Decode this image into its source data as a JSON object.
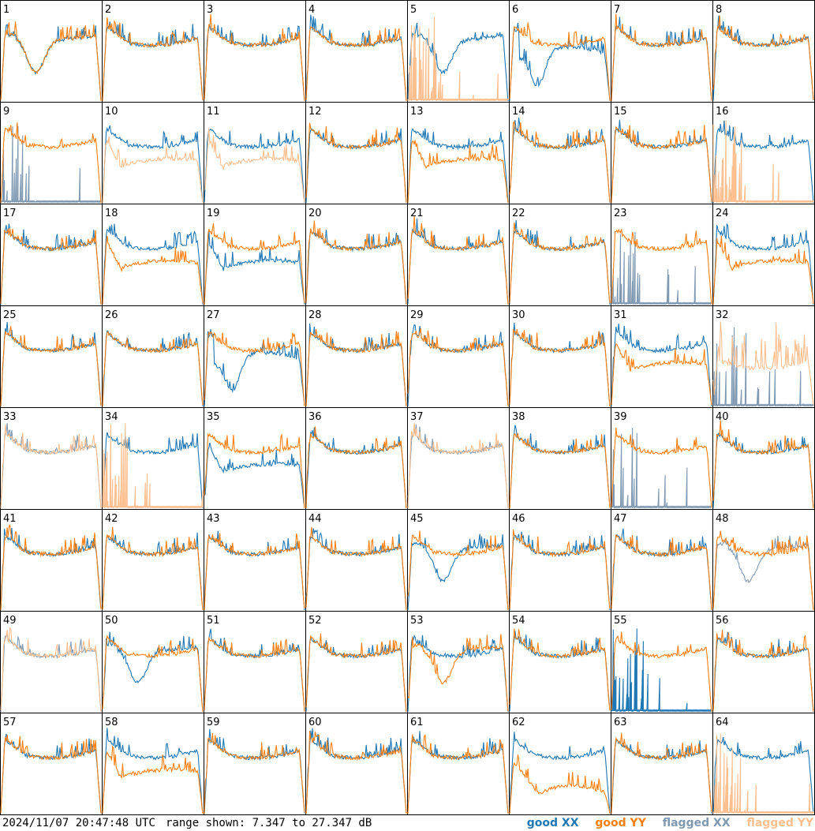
{
  "footer": {
    "timestamp": "2024/11/07 20:47:48 UTC",
    "range_text": "range shown: 7.347 to 27.347 dB"
  },
  "legend": {
    "good_xx": "good XX",
    "good_yy": "good YY",
    "flagged_xx": "flagged XX",
    "flagged_yy": "flagged YY"
  },
  "colors": {
    "good_xx": "#1f77b4",
    "good_yy": "#ff7f0e",
    "flagged_xx": "#7f99b2",
    "flagged_yy": "#ffbf8f"
  },
  "chart_data": {
    "type": "line",
    "grid": "8x8 small multiples, one panel per antenna",
    "ylim": [
      7.347,
      27.347
    ],
    "panels": [
      {
        "id": "1",
        "xx": "good",
        "yy": "good",
        "xx_shape": "dip",
        "yy_shape": "dip"
      },
      {
        "id": "2",
        "xx": "good",
        "yy": "good",
        "xx_shape": "normal",
        "yy_shape": "normal"
      },
      {
        "id": "3",
        "xx": "good",
        "yy": "good",
        "xx_shape": "normal",
        "yy_shape": "normal"
      },
      {
        "id": "4",
        "xx": "good",
        "yy": "good",
        "xx_shape": "normal",
        "yy_shape": "normal"
      },
      {
        "id": "5",
        "xx": "good",
        "yy": "flagged",
        "xx_shape": "dip",
        "yy_shape": "dead"
      },
      {
        "id": "6",
        "xx": "good",
        "yy": "good",
        "xx_shape": "deepdip",
        "yy_shape": "normal"
      },
      {
        "id": "7",
        "xx": "good",
        "yy": "good",
        "xx_shape": "normal",
        "yy_shape": "normal"
      },
      {
        "id": "8",
        "xx": "good",
        "yy": "good",
        "xx_shape": "normal",
        "yy_shape": "normal"
      },
      {
        "id": "9",
        "xx": "flagged",
        "yy": "good",
        "xx_shape": "dead",
        "yy_shape": "normal"
      },
      {
        "id": "10",
        "xx": "good",
        "yy": "flagged",
        "xx_shape": "normal",
        "yy_shape": "low"
      },
      {
        "id": "11",
        "xx": "good",
        "yy": "flagged",
        "xx_shape": "normal",
        "yy_shape": "low"
      },
      {
        "id": "12",
        "xx": "good",
        "yy": "good",
        "xx_shape": "normal",
        "yy_shape": "normal"
      },
      {
        "id": "13",
        "xx": "good",
        "yy": "good",
        "xx_shape": "normal",
        "yy_shape": "low"
      },
      {
        "id": "14",
        "xx": "good",
        "yy": "good",
        "xx_shape": "normal",
        "yy_shape": "normal"
      },
      {
        "id": "15",
        "xx": "good",
        "yy": "good",
        "xx_shape": "normal",
        "yy_shape": "normal"
      },
      {
        "id": "16",
        "xx": "good",
        "yy": "flagged",
        "xx_shape": "normal",
        "yy_shape": "dead"
      },
      {
        "id": "17",
        "xx": "good",
        "yy": "good",
        "xx_shape": "normal",
        "yy_shape": "normal"
      },
      {
        "id": "18",
        "xx": "good",
        "yy": "good",
        "xx_shape": "normal",
        "yy_shape": "low"
      },
      {
        "id": "19",
        "xx": "good",
        "yy": "good",
        "xx_shape": "low",
        "yy_shape": "normal"
      },
      {
        "id": "20",
        "xx": "good",
        "yy": "good",
        "xx_shape": "normal",
        "yy_shape": "normal"
      },
      {
        "id": "21",
        "xx": "good",
        "yy": "good",
        "xx_shape": "normal",
        "yy_shape": "normal"
      },
      {
        "id": "22",
        "xx": "good",
        "yy": "good",
        "xx_shape": "normal",
        "yy_shape": "normal"
      },
      {
        "id": "23",
        "xx": "flagged",
        "yy": "good",
        "xx_shape": "dead",
        "yy_shape": "normal"
      },
      {
        "id": "24",
        "xx": "good",
        "yy": "good",
        "xx_shape": "normal",
        "yy_shape": "low"
      },
      {
        "id": "25",
        "xx": "good",
        "yy": "good",
        "xx_shape": "normal",
        "yy_shape": "normal"
      },
      {
        "id": "26",
        "xx": "good",
        "yy": "good",
        "xx_shape": "normal",
        "yy_shape": "normal"
      },
      {
        "id": "27",
        "xx": "good",
        "yy": "good",
        "xx_shape": "deepdip",
        "yy_shape": "normal"
      },
      {
        "id": "28",
        "xx": "good",
        "yy": "good",
        "xx_shape": "normal",
        "yy_shape": "normal"
      },
      {
        "id": "29",
        "xx": "good",
        "yy": "good",
        "xx_shape": "normal",
        "yy_shape": "normal"
      },
      {
        "id": "30",
        "xx": "good",
        "yy": "good",
        "xx_shape": "normal",
        "yy_shape": "normal"
      },
      {
        "id": "31",
        "xx": "good",
        "yy": "good",
        "xx_shape": "normal",
        "yy_shape": "low"
      },
      {
        "id": "32",
        "xx": "flagged",
        "yy": "flagged",
        "xx_shape": "dead",
        "yy_shape": "noisy"
      },
      {
        "id": "33",
        "xx": "flagged",
        "yy": "flagged",
        "xx_shape": "normal",
        "yy_shape": "normal"
      },
      {
        "id": "34",
        "xx": "good",
        "yy": "flagged",
        "xx_shape": "normal",
        "yy_shape": "dead"
      },
      {
        "id": "35",
        "xx": "good",
        "yy": "good",
        "xx_shape": "low",
        "yy_shape": "normal"
      },
      {
        "id": "36",
        "xx": "good",
        "yy": "good",
        "xx_shape": "normal",
        "yy_shape": "normal"
      },
      {
        "id": "37",
        "xx": "flagged",
        "yy": "flagged",
        "xx_shape": "normal",
        "yy_shape": "normal"
      },
      {
        "id": "38",
        "xx": "good",
        "yy": "good",
        "xx_shape": "normal",
        "yy_shape": "normal"
      },
      {
        "id": "39",
        "xx": "flagged",
        "yy": "good",
        "xx_shape": "dead",
        "yy_shape": "normal"
      },
      {
        "id": "40",
        "xx": "good",
        "yy": "good",
        "xx_shape": "normal",
        "yy_shape": "normal"
      },
      {
        "id": "41",
        "xx": "good",
        "yy": "good",
        "xx_shape": "normal",
        "yy_shape": "normal"
      },
      {
        "id": "42",
        "xx": "good",
        "yy": "good",
        "xx_shape": "normal",
        "yy_shape": "normal"
      },
      {
        "id": "43",
        "xx": "good",
        "yy": "good",
        "xx_shape": "normal",
        "yy_shape": "normal"
      },
      {
        "id": "44",
        "xx": "good",
        "yy": "good",
        "xx_shape": "normal",
        "yy_shape": "normal"
      },
      {
        "id": "45",
        "xx": "good",
        "yy": "good",
        "xx_shape": "dip",
        "yy_shape": "normal"
      },
      {
        "id": "46",
        "xx": "good",
        "yy": "good",
        "xx_shape": "normal",
        "yy_shape": "normal"
      },
      {
        "id": "47",
        "xx": "good",
        "yy": "good",
        "xx_shape": "normal",
        "yy_shape": "normal"
      },
      {
        "id": "48",
        "xx": "flagged",
        "yy": "good",
        "xx_shape": "dip",
        "yy_shape": "normal"
      },
      {
        "id": "49",
        "xx": "flagged",
        "yy": "flagged",
        "xx_shape": "normal",
        "yy_shape": "normal"
      },
      {
        "id": "50",
        "xx": "good",
        "yy": "good",
        "xx_shape": "dip",
        "yy_shape": "normal"
      },
      {
        "id": "51",
        "xx": "good",
        "yy": "good",
        "xx_shape": "normal",
        "yy_shape": "normal"
      },
      {
        "id": "52",
        "xx": "good",
        "yy": "good",
        "xx_shape": "normal",
        "yy_shape": "normal"
      },
      {
        "id": "53",
        "xx": "good",
        "yy": "good",
        "xx_shape": "normal",
        "yy_shape": "dip"
      },
      {
        "id": "54",
        "xx": "good",
        "yy": "good",
        "xx_shape": "normal",
        "yy_shape": "normal"
      },
      {
        "id": "55",
        "xx": "good",
        "yy": "good",
        "xx_shape": "dead",
        "yy_shape": "normal"
      },
      {
        "id": "56",
        "xx": "good",
        "yy": "good",
        "xx_shape": "normal",
        "yy_shape": "normal"
      },
      {
        "id": "57",
        "xx": "good",
        "yy": "good",
        "xx_shape": "normal",
        "yy_shape": "normal"
      },
      {
        "id": "58",
        "xx": "good",
        "yy": "good",
        "xx_shape": "normal",
        "yy_shape": "low"
      },
      {
        "id": "59",
        "xx": "good",
        "yy": "good",
        "xx_shape": "normal",
        "yy_shape": "normal"
      },
      {
        "id": "60",
        "xx": "good",
        "yy": "good",
        "xx_shape": "normal",
        "yy_shape": "normal"
      },
      {
        "id": "61",
        "xx": "good",
        "yy": "good",
        "xx_shape": "normal",
        "yy_shape": "normal"
      },
      {
        "id": "62",
        "xx": "good",
        "yy": "good",
        "xx_shape": "normal",
        "yy_shape": "lowfall"
      },
      {
        "id": "63",
        "xx": "good",
        "yy": "good",
        "xx_shape": "normal",
        "yy_shape": "normal"
      },
      {
        "id": "64",
        "xx": "good",
        "yy": "flagged",
        "xx_shape": "normal",
        "yy_shape": "dead"
      }
    ]
  }
}
